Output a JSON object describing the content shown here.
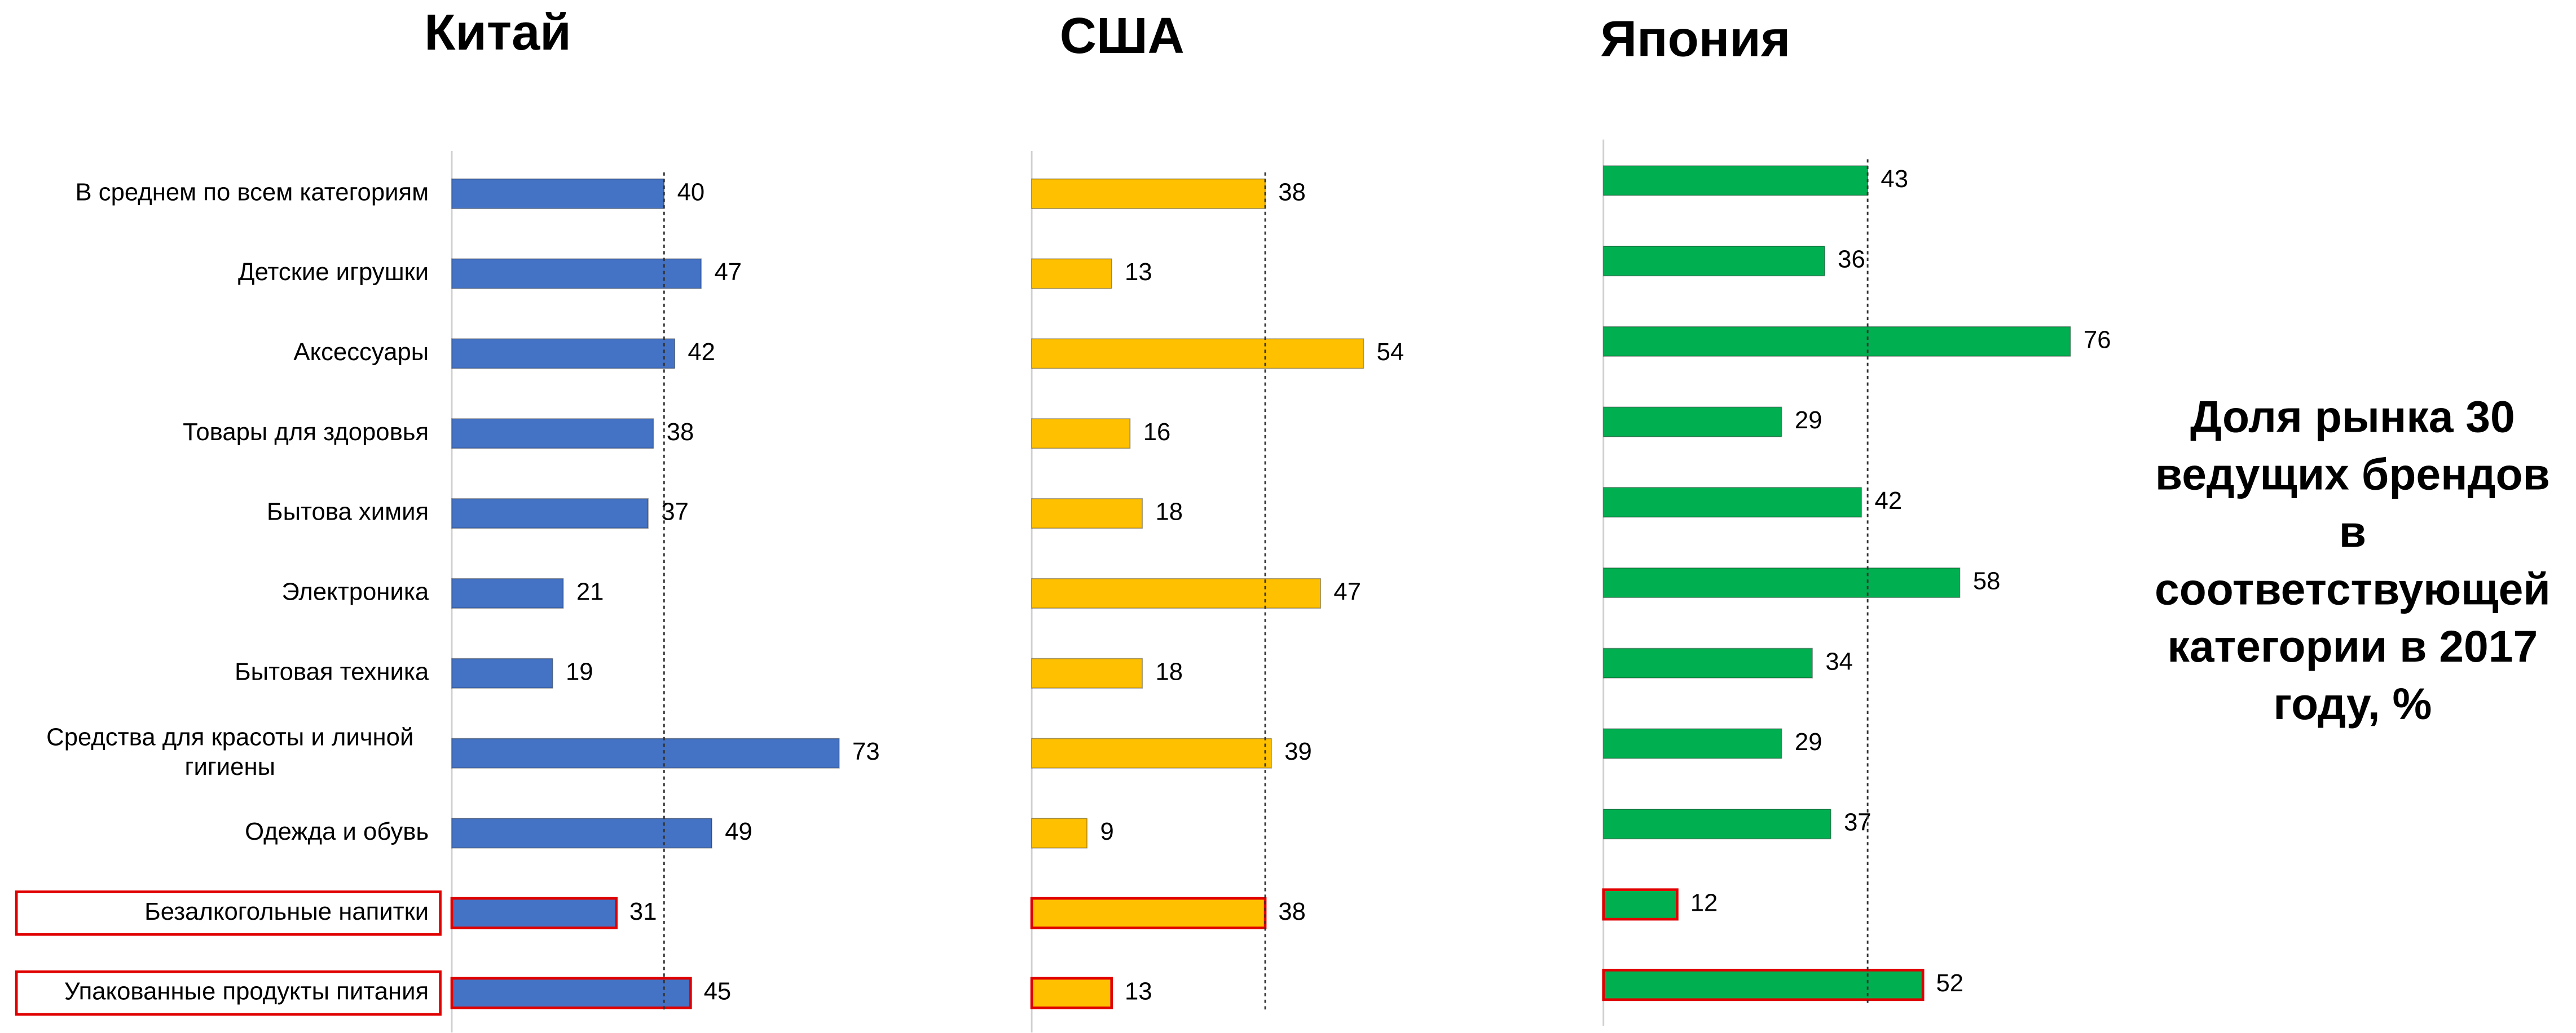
{
  "caption": [
    "Доля рынка 30",
    "ведущих брендов",
    "в",
    "соответствующей",
    "категории в 2017",
    "году, %"
  ],
  "chart_data": [
    {
      "type": "bar",
      "title": "Китай",
      "color": "#4472c4",
      "categories": [
        "В среднем по всем категориям",
        "Детские игрушки",
        "Аксессуары",
        "Товары для здоровья",
        "Бытова химия",
        "Электроника",
        "Бытовая техника",
        "Средства для красоты и личной гигиены",
        "Одежда и обувь",
        "Безалкогольные напитки",
        "Упакованные продукты питания"
      ],
      "values": [
        40,
        47,
        42,
        38,
        37,
        21,
        19,
        73,
        49,
        31,
        45
      ],
      "xlim": [
        0,
        100
      ],
      "reference_line": 40,
      "highlighted": [
        9,
        10
      ]
    },
    {
      "type": "bar",
      "title": "США",
      "color": "#ffc000",
      "values": [
        38,
        13,
        54,
        16,
        18,
        47,
        18,
        39,
        9,
        38,
        13
      ],
      "xlim": [
        0,
        100
      ],
      "reference_line": 38,
      "highlighted": [
        9,
        10
      ]
    },
    {
      "type": "bar",
      "title": "Япония",
      "color": "#00b050",
      "values": [
        43,
        36,
        76,
        29,
        42,
        58,
        34,
        29,
        37,
        12,
        52
      ],
      "xlim": [
        0,
        100
      ],
      "reference_line": 43,
      "highlighted": [
        9,
        10
      ]
    }
  ]
}
